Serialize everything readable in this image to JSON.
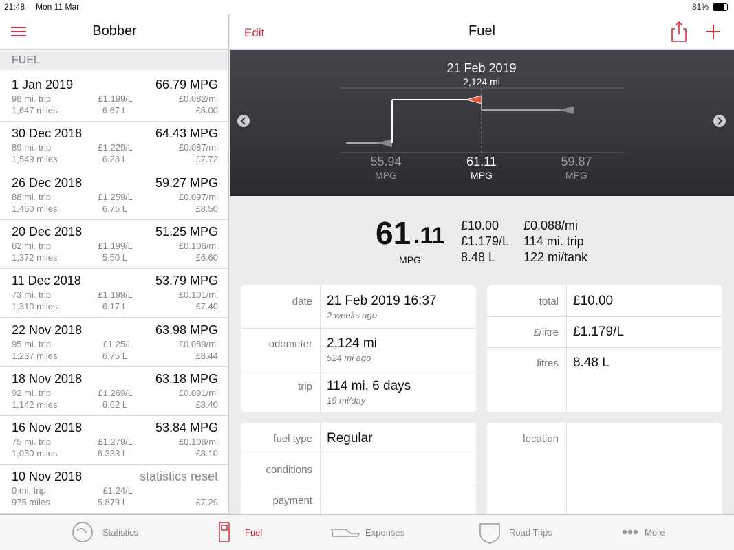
{
  "status": {
    "time": "21:48",
    "date": "Mon 11 Mar",
    "battery": "81%"
  },
  "sidebar": {
    "title": "Bobber",
    "section": "FUEL",
    "entries": [
      {
        "date": "1 Jan 2019",
        "mpg": "66.79 MPG",
        "trip": "98 mi. trip",
        "price": "£1.199/L",
        "cost_per_mile": "£0.082/mi",
        "odometer": "1,647 miles",
        "litres": "6.67 L",
        "total": "£8.00"
      },
      {
        "date": "30 Dec 2018",
        "mpg": "64.43 MPG",
        "trip": "89 mi. trip",
        "price": "£1.229/L",
        "cost_per_mile": "£0.087/mi",
        "odometer": "1,549 miles",
        "litres": "6.28 L",
        "total": "£7.72"
      },
      {
        "date": "26 Dec 2018",
        "mpg": "59.27 MPG",
        "trip": "88 mi. trip",
        "price": "£1.259/L",
        "cost_per_mile": "£0.097/mi",
        "odometer": "1,460 miles",
        "litres": "6.75 L",
        "total": "£8.50"
      },
      {
        "date": "20 Dec 2018",
        "mpg": "51.25 MPG",
        "trip": "62 mi. trip",
        "price": "£1.199/L",
        "cost_per_mile": "£0.106/mi",
        "odometer": "1,372 miles",
        "litres": "5.50 L",
        "total": "£6.60"
      },
      {
        "date": "11 Dec 2018",
        "mpg": "53.79 MPG",
        "trip": "73 mi. trip",
        "price": "£1.199/L",
        "cost_per_mile": "£0.101/mi",
        "odometer": "1,310 miles",
        "litres": "6.17 L",
        "total": "£7.40"
      },
      {
        "date": "22 Nov 2018",
        "mpg": "63.98 MPG",
        "trip": "95 mi. trip",
        "price": "£1.25/L",
        "cost_per_mile": "£0.089/mi",
        "odometer": "1,237 miles",
        "litres": "6.75 L",
        "total": "£8.44"
      },
      {
        "date": "18 Nov 2018",
        "mpg": "63.18 MPG",
        "trip": "92 mi. trip",
        "price": "£1.269/L",
        "cost_per_mile": "£0.091/mi",
        "odometer": "1,142 miles",
        "litres": "6.62 L",
        "total": "£8.40"
      },
      {
        "date": "16 Nov 2018",
        "mpg": "53.84 MPG",
        "trip": "75 mi. trip",
        "price": "£1.279/L",
        "cost_per_mile": "£0.108/mi",
        "odometer": "1,050 miles",
        "litres": "6.333 L",
        "total": "£8.10"
      },
      {
        "date": "10 Nov 2018",
        "note": "statistics reset",
        "trip": "0 mi. trip",
        "price": "£1.24/L",
        "odometer": "975 miles",
        "litres": "5.879 L",
        "total": "£7.29"
      }
    ]
  },
  "detail": {
    "edit": "Edit",
    "title": "Fuel",
    "chart": {
      "date": "21 Feb 2019",
      "odometer": "2,124 mi",
      "points": [
        {
          "value": 55.94,
          "unit": "MPG"
        },
        {
          "value": 61.11,
          "unit": "MPG"
        },
        {
          "value": 59.87,
          "unit": "MPG"
        }
      ]
    },
    "summary": {
      "mpg_whole": "61",
      "mpg_fraction": ".11",
      "unit": "MPG",
      "column1": [
        "£10.00",
        "£1.179/L",
        "8.48 L"
      ],
      "column2": [
        "£0.088/mi",
        "114 mi. trip",
        "122 mi/tank"
      ]
    },
    "cards": [
      {
        "rows": [
          {
            "label": "date",
            "value": "21 Feb 2019 16:37",
            "sub": "2 weeks ago"
          },
          {
            "label": "odometer",
            "value": "2,124 mi",
            "sub": "524 mi ago"
          },
          {
            "label": "trip",
            "value": "114 mi, 6 days",
            "sub": "19 mi/day"
          }
        ]
      },
      {
        "rows": [
          {
            "label": "total",
            "value": "£10.00"
          },
          {
            "label": "£/litre",
            "value": "£1.179/L"
          },
          {
            "label": "litres",
            "value": "8.48 L"
          }
        ]
      },
      {
        "rows": [
          {
            "label": "fuel type",
            "value": "Regular"
          },
          {
            "label": "conditions"
          },
          {
            "label": "payment"
          }
        ]
      },
      {
        "rows": [
          {
            "label": "location"
          }
        ]
      }
    ]
  },
  "tabs": [
    "Statistics",
    "Fuel",
    "Expenses",
    "Road Trips",
    "More"
  ]
}
